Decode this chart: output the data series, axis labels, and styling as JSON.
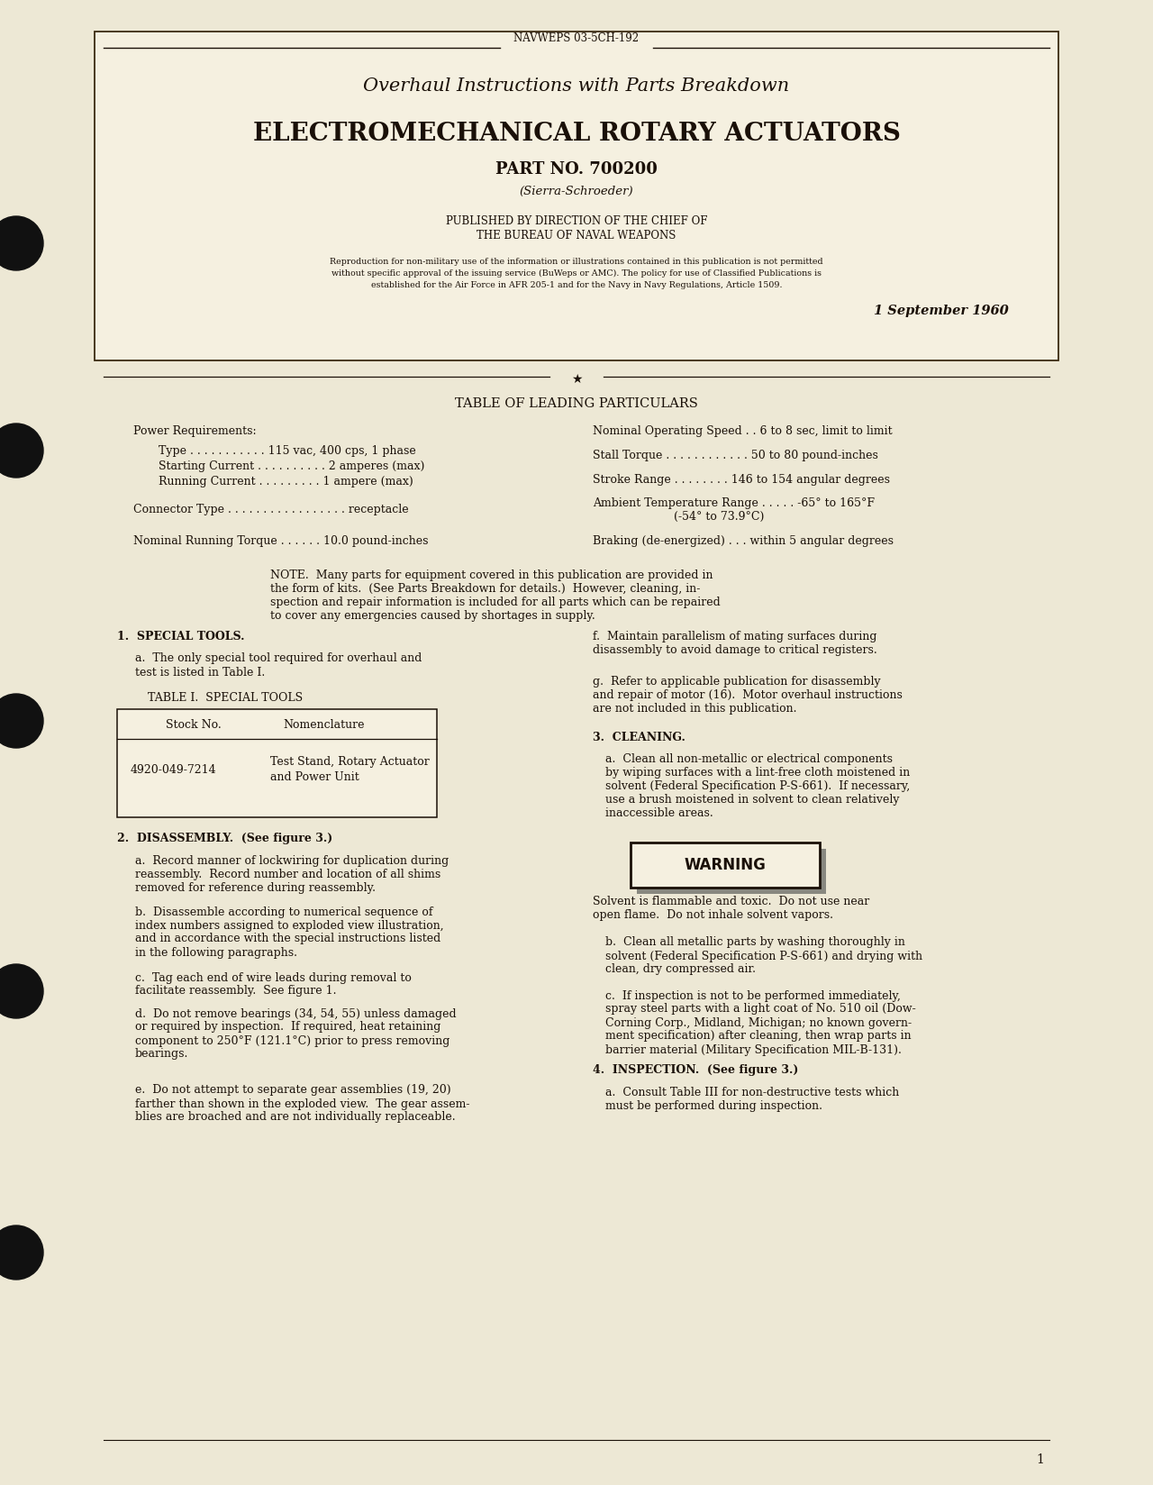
{
  "bg_color": "#f5f0e0",
  "page_bg": "#ede8d5",
  "text_color": "#1a1008",
  "header_doc_num": "NAVWEPS 03-5CH-192",
  "title1": "Overhaul Instructions with Parts Breakdown",
  "title2": "ELECTROMECHANICAL ROTARY ACTUATORS",
  "title3": "PART NO. 700200",
  "title4": "(Sierra-Schroeder)",
  "published_line1": "PUBLISHED BY DIRECTION OF THE CHIEF OF",
  "published_line2": "THE BUREAU OF NAVAL WEAPONS",
  "reproduction_line1": "Reproduction for non-military use of the information or illustrations contained in this publication is not permitted",
  "reproduction_line2": "without specific approval of the issuing service (BuWeps or AMC). The policy for use of Classified Publications is",
  "reproduction_line3": "established for the Air Force in AFR 205-1 and for the Navy in Navy Regulations, Article 1509.",
  "date": "1 September 1960",
  "table_heading": "TABLE OF LEADING PARTICULARS",
  "lp_power_req": "Power Requirements:",
  "lp_type": "Type . . . . . . . . . . . 115 vac, 400 cps, 1 phase",
  "lp_starting": "Starting Current . . . . . . . . . . 2 amperes (max)",
  "lp_running": "Running Current . . . . . . . . . 1 ampere (max)",
  "lp_connector": "Connector Type . . . . . . . . . . . . . . . . . receptacle",
  "lp_nom_torque": "Nominal Running Torque . . . . . . 10.0 pound-inches",
  "lp_nom_speed": "Nominal Operating Speed . . 6 to 8 sec, limit to limit",
  "lp_stall": "Stall Torque . . . . . . . . . . . . 50 to 80 pound-inches",
  "lp_stroke": "Stroke Range . . . . . . . . 146 to 154 angular degrees",
  "lp_ambient1": "Ambient Temperature Range . . . . . -65° to 165°F",
  "lp_ambient2": "(-54° to 73.9°C)",
  "lp_braking": "Braking (de-energized) . . . within 5 angular degrees",
  "note_line1": "NOTE.  Many parts for equipment covered in this publication are provided in",
  "note_line2": "the form of kits.  (See Parts Breakdown for details.)  However, cleaning, in-",
  "note_line3": "spection and repair information is included for all parts which can be repaired",
  "note_line4": "to cover any emergencies caused by shortages in supply.",
  "s1_head": "1.  SPECIAL TOOLS.",
  "s1a_line1": "a.  The only special tool required for overhaul and",
  "s1a_line2": "test is listed in Table I.",
  "table1_title": "TABLE I.  SPECIAL TOOLS",
  "t1_col1_head": "Stock No.",
  "t1_col2_head": "Nomenclature",
  "t1_r1c1": "4920-049-7214",
  "t1_r1c2a": "Test Stand, Rotary Actuator",
  "t1_r1c2b": "and Power Unit",
  "s2_head": "2.  DISASSEMBLY.  (See figure 3.)",
  "s2a_l1": "a.  Record manner of lockwiring for duplication during",
  "s2a_l2": "reassembly.  Record number and location of all shims",
  "s2a_l3": "removed for reference during reassembly.",
  "s2b_l1": "b.  Disassemble according to numerical sequence of",
  "s2b_l2": "index numbers assigned to exploded view illustration,",
  "s2b_l3": "and in accordance with the special instructions listed",
  "s2b_l4": "in the following paragraphs.",
  "s2c_l1": "c.  Tag each end of wire leads during removal to",
  "s2c_l2": "facilitate reassembly.  See figure 1.",
  "s2d_l1": "d.  Do not remove bearings (34, 54, 55) unless damaged",
  "s2d_l2": "or required by inspection.  If required, heat retaining",
  "s2d_l3": "component to 250°F (121.1°C) prior to press removing",
  "s2d_l4": "bearings.",
  "s2e_l1": "e.  Do not attempt to separate gear assemblies (19, 20)",
  "s2e_l2": "farther than shown in the exploded view.  The gear assem-",
  "s2e_l3": "blies are broached and are not individually replaceable.",
  "sf_l1": "f.  Maintain parallelism of mating surfaces during",
  "sf_l2": "disassembly to avoid damage to critical registers.",
  "sg_l1": "g.  Refer to applicable publication for disassembly",
  "sg_l2": "and repair of motor (16).  Motor overhaul instructions",
  "sg_l3": "are not included in this publication.",
  "s3_head": "3.  CLEANING.",
  "s3a_l1": "a.  Clean all non-metallic or electrical components",
  "s3a_l2": "by wiping surfaces with a lint-free cloth moistened in",
  "s3a_l3": "solvent (Federal Specification P-S-661).  If necessary,",
  "s3a_l4": "use a brush moistened in solvent to clean relatively",
  "s3a_l5": "inaccessible areas.",
  "warning_label": "WARNING",
  "swarn_l1": "Solvent is flammable and toxic.  Do not use near",
  "swarn_l2": "open flame.  Do not inhale solvent vapors.",
  "s3b_l1": "b.  Clean all metallic parts by washing thoroughly in",
  "s3b_l2": "solvent (Federal Specification P-S-661) and drying with",
  "s3b_l3": "clean, dry compressed air.",
  "s3c_l1": "c.  If inspection is not to be performed immediately,",
  "s3c_l2": "spray steel parts with a light coat of No. 510 oil (Dow-",
  "s3c_l3": "Corning Corp., Midland, Michigan; no known govern-",
  "s3c_l4": "ment specification) after cleaning, then wrap parts in",
  "s3c_l5": "barrier material (Military Specification MIL-B-131).",
  "s4_head": "4.  INSPECTION.  (See figure 3.)",
  "s4a_l1": "a.  Consult Table III for non-destructive tests which",
  "s4a_l2": "must be performed during inspection.",
  "page_number": "1"
}
